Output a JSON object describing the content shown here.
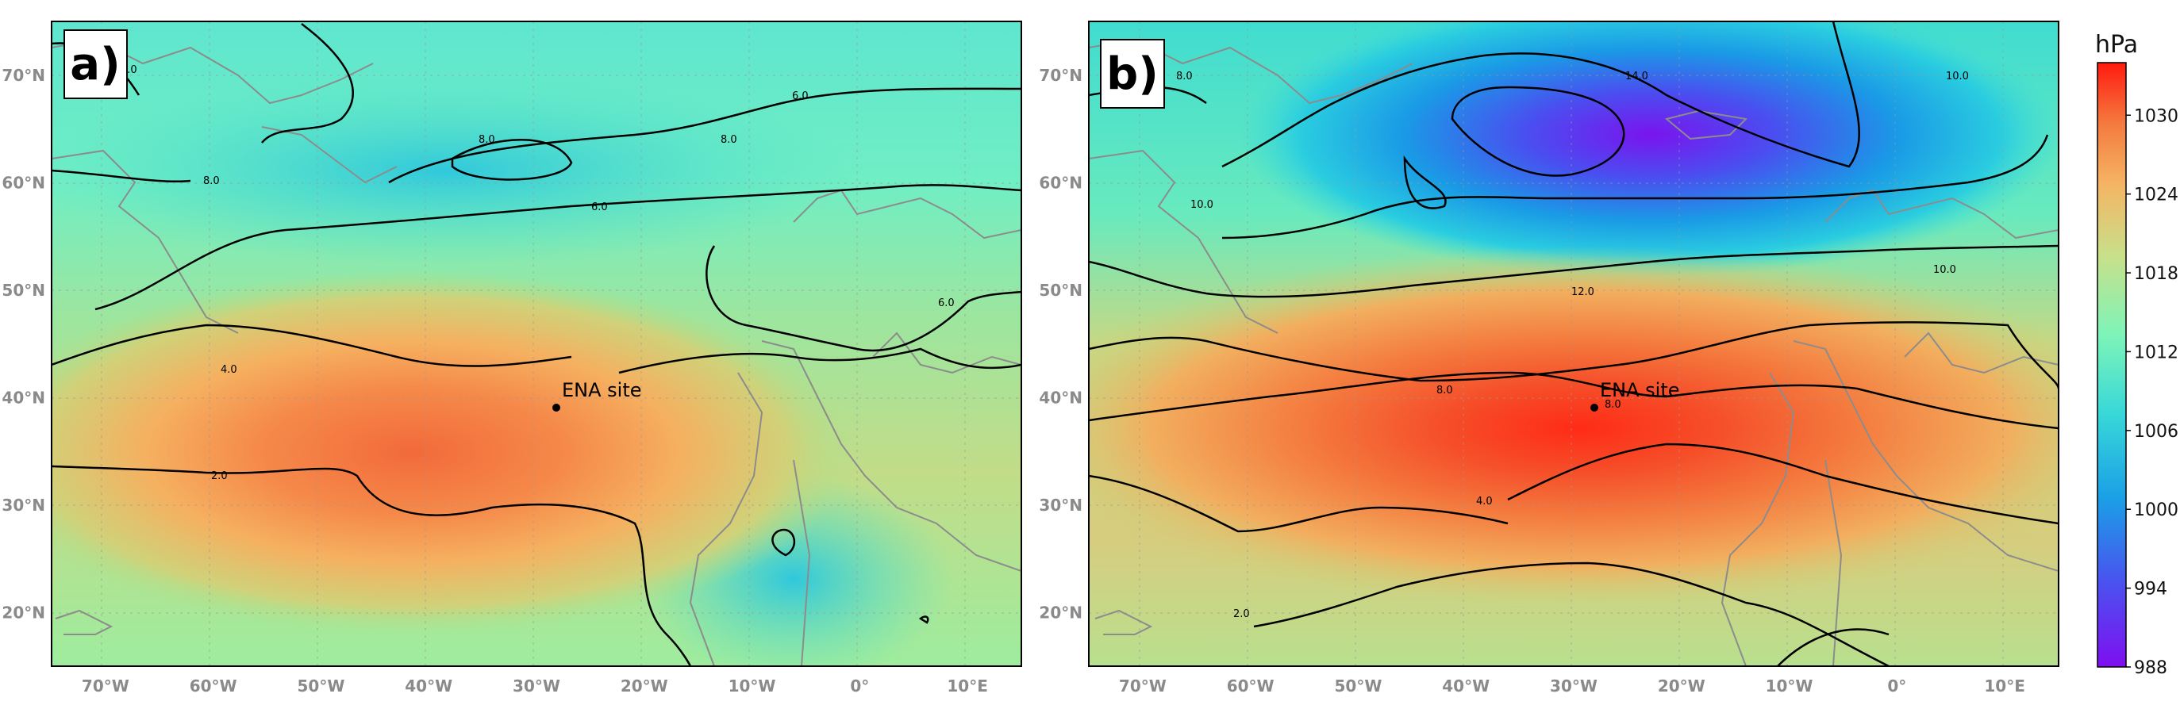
{
  "panels": [
    {
      "id": "a",
      "label": "a)",
      "site_label": "ENA site",
      "site": {
        "lon": -28.0,
        "lat": 39.1
      },
      "high_center": {
        "lon": -32,
        "lat": 37,
        "pressure": 1024
      },
      "contour_labels": [
        "6.0",
        "8.0",
        "8.0",
        "8.0",
        "6.0",
        "4.0",
        "2.0",
        "6.0",
        "8.0"
      ]
    },
    {
      "id": "b",
      "label": "b)",
      "site_label": "ENA site",
      "site": {
        "lon": -28.0,
        "lat": 39.1
      },
      "high_center": {
        "lon": -28,
        "lat": 38,
        "pressure": 1032
      },
      "low_center": {
        "lon": -20,
        "lat": 65,
        "pressure": 988
      },
      "contour_labels": [
        "8.0",
        "14.0",
        "10.0",
        "10.0",
        "10.0",
        "12.0",
        "8.0",
        "8.0",
        "4.0",
        "2.0"
      ]
    }
  ],
  "axes": {
    "lon_ticks": [
      "70°W",
      "60°W",
      "50°W",
      "40°W",
      "30°W",
      "20°W",
      "10°W",
      "0°",
      "10°E"
    ],
    "lat_ticks": [
      "70°N",
      "60°N",
      "50°N",
      "40°N",
      "30°N",
      "20°N"
    ],
    "lon_range": [
      -75,
      15
    ],
    "lat_range": [
      15,
      75
    ]
  },
  "colorbar": {
    "title": "hPa",
    "ticks": [
      "1030",
      "1024",
      "1018",
      "1012",
      "1006",
      "1000",
      "994",
      "988"
    ],
    "range": [
      988,
      1034
    ],
    "colormap": "rainbow"
  }
}
